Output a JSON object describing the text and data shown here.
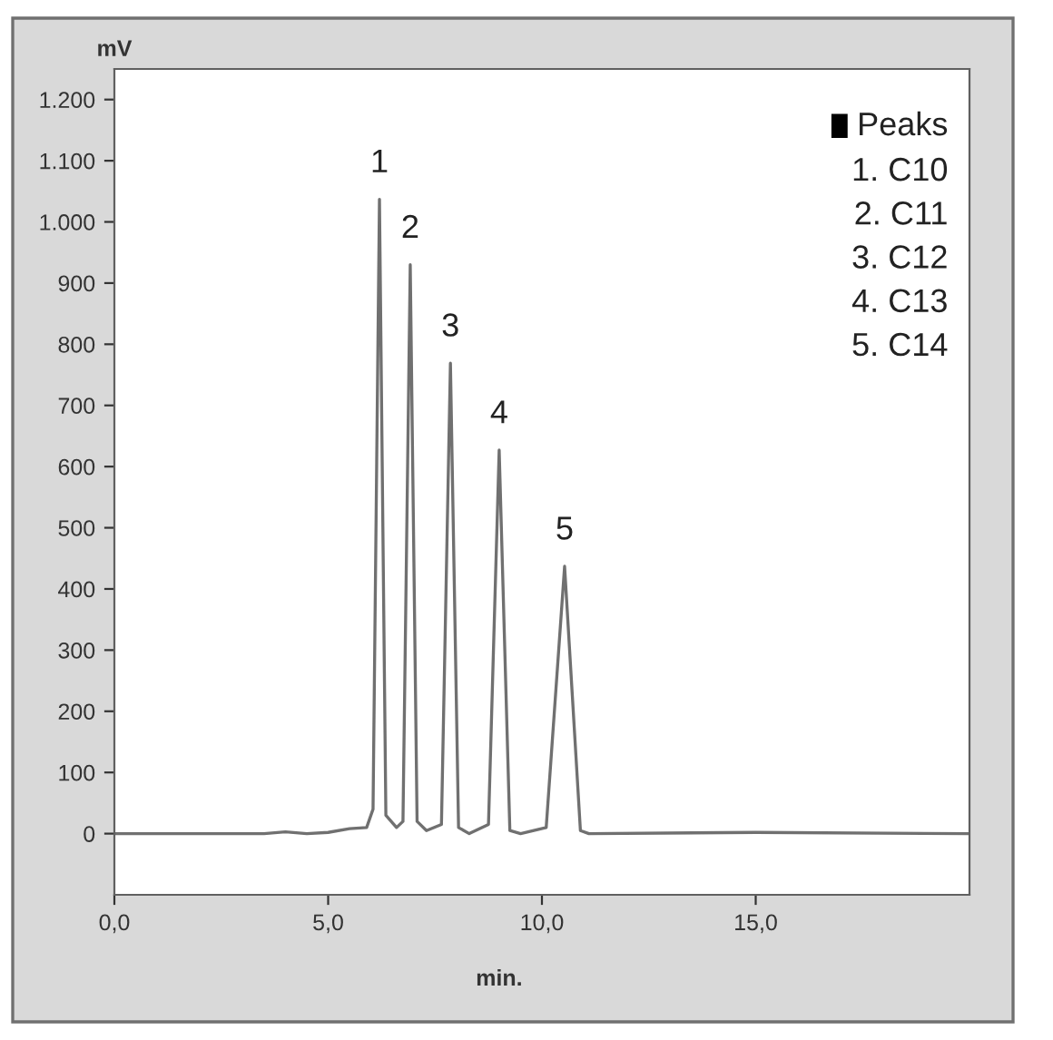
{
  "chart_data": {
    "type": "line",
    "xlabel": "min.",
    "ylabel": "mV",
    "x": [
      0,
      3.5,
      4.0,
      4.5,
      5.0,
      5.5,
      5.9,
      6.05,
      6.2,
      6.35,
      6.6,
      6.75,
      6.92,
      7.08,
      7.3,
      7.65,
      7.86,
      8.05,
      8.3,
      8.75,
      9.0,
      9.25,
      9.5,
      10.1,
      10.53,
      10.9,
      11.1,
      15,
      20
    ],
    "series": [
      {
        "color": "#707070",
        "values": [
          0,
          0,
          3,
          0,
          2,
          8,
          10,
          40,
          1037,
          30,
          10,
          20,
          930,
          20,
          5,
          15,
          769,
          10,
          0,
          15,
          627,
          5,
          0,
          10,
          437,
          5,
          0,
          2,
          0
        ]
      }
    ],
    "xlim": [
      0,
      20
    ],
    "ylim": [
      -100,
      1250
    ],
    "xticks": [
      {
        "value": 0,
        "label": "0,0"
      },
      {
        "value": 5,
        "label": "5,0"
      },
      {
        "value": 10,
        "label": "10,0"
      },
      {
        "value": 15,
        "label": "15,0"
      }
    ],
    "yticks": [
      0,
      100,
      200,
      300,
      400,
      500,
      600,
      700,
      800,
      900,
      {
        "value": 1000,
        "label": "1.000"
      },
      {
        "value": 1100,
        "label": "1.100"
      },
      {
        "value": 1200,
        "label": "1.200"
      }
    ],
    "grid": false,
    "legend": false,
    "marker": "none",
    "line_style": "solid",
    "annotations": [
      {
        "text": "1",
        "x": 6.2,
        "y": 1037
      },
      {
        "text": "2",
        "x": 6.92,
        "y": 930
      },
      {
        "text": "3",
        "x": 7.86,
        "y": 769
      },
      {
        "text": "4",
        "x": 9.0,
        "y": 627
      },
      {
        "text": "5",
        "x": 10.53,
        "y": 437
      },
      "Peaks",
      "1. C10",
      "2. C11",
      "3. C12",
      "4. C13",
      "5. C14"
    ]
  }
}
